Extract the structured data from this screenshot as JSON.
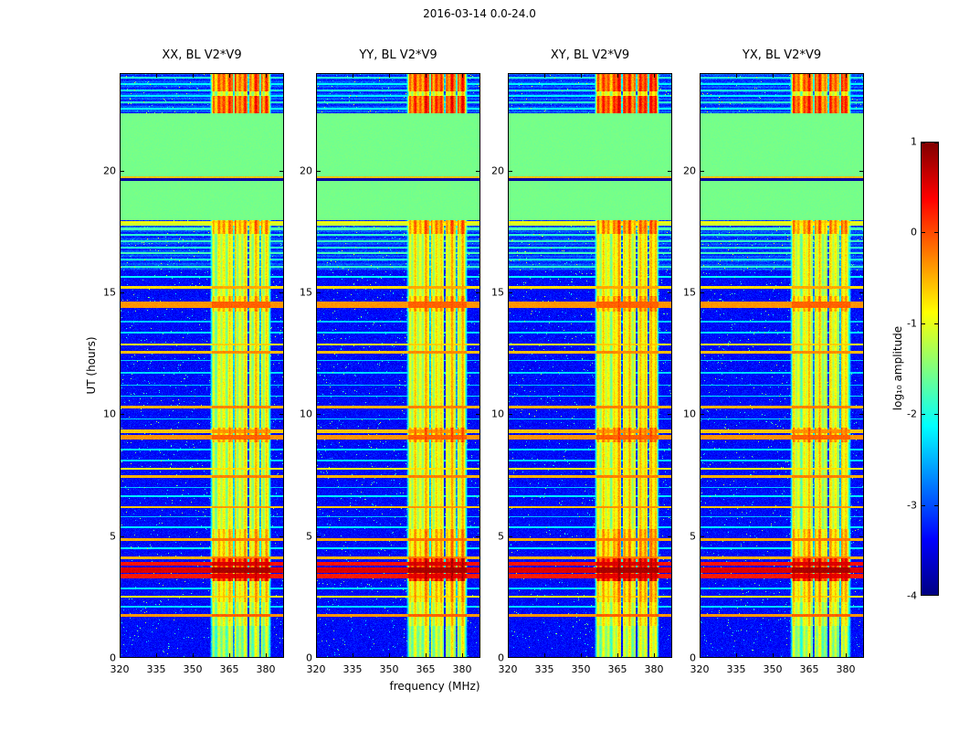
{
  "suptitle": "2016-03-14 0.0-24.0",
  "chart_data": {
    "type": "heatmap",
    "title": "2016-03-14 0.0-24.0",
    "xlabel": "frequency (MHz)",
    "ylabel": "UT (hours)",
    "x_range": [
      320,
      387.5
    ],
    "y_range": [
      0,
      24
    ],
    "x_ticks": [
      320,
      335,
      350,
      365,
      380
    ],
    "y_ticks": [
      0,
      5,
      10,
      15,
      20
    ],
    "colormap": "jet",
    "panels": [
      {
        "title": "XX, BL V2*V9",
        "seed": 101,
        "band_shift": 0,
        "band_gain": 0
      },
      {
        "title": "YY, BL V2*V9",
        "seed": 202,
        "band_shift": 0,
        "band_gain": 0.08
      },
      {
        "title": "XY, BL V2*V9",
        "seed": 303,
        "band_shift": -1.5,
        "band_gain": 0.1
      },
      {
        "title": "YX, BL V2*V9",
        "seed": 404,
        "band_shift": 0,
        "band_gain": 0
      }
    ],
    "colorbar": {
      "label": "log₁₀ amplitude",
      "ticks": [
        1,
        0,
        -1,
        -2,
        -3,
        -4
      ],
      "range": [
        -4,
        1
      ]
    },
    "features": {
      "background_level": -3.35,
      "rfi_band": {
        "f_start": 358,
        "f_end": 381.5,
        "level": -1.05
      },
      "rfi_gaps": [
        366.9,
        372.9,
        377.6
      ],
      "green_block": {
        "t_start": 17.95,
        "t_end": 22.35,
        "level": -1.55
      },
      "dark_line": {
        "t": 19.63,
        "level": -3.85
      },
      "red_line": {
        "t": 19.73,
        "level": -0.55
      },
      "band_boosts": [
        {
          "t0": 2.3,
          "t1": 3.15,
          "add": 0.25
        },
        {
          "t0": 3.15,
          "t1": 4.1,
          "add": 1.2
        },
        {
          "t0": 4.1,
          "t1": 5.3,
          "add": 0.35
        },
        {
          "t0": 8.85,
          "t1": 9.45,
          "add": 0.5
        },
        {
          "t0": 14.2,
          "t1": 14.85,
          "add": 0.4
        },
        {
          "t0": 17.4,
          "t1": 17.95,
          "add": 0.55
        },
        {
          "t0": 22.35,
          "t1": 23.05,
          "add": 0.95
        },
        {
          "t0": 23.25,
          "t1": 23.98,
          "add": 0.85
        }
      ],
      "horizontal_lines": [
        {
          "t": 1.75,
          "level": -0.35,
          "w": 0.05
        },
        {
          "t": 2.1,
          "level": -2.3,
          "w": 0.04
        },
        {
          "t": 2.5,
          "level": -0.9,
          "w": 0.04
        },
        {
          "t": 2.85,
          "level": -2.2,
          "w": 0.04
        },
        {
          "t": 3.35,
          "level": 0.25,
          "w": 0.09
        },
        {
          "t": 3.6,
          "level": 0.55,
          "w": 0.12
        },
        {
          "t": 3.85,
          "level": 0.3,
          "w": 0.07
        },
        {
          "t": 4.1,
          "level": -0.5,
          "w": 0.05
        },
        {
          "t": 4.5,
          "level": -2.1,
          "w": 0.04
        },
        {
          "t": 4.85,
          "level": -0.45,
          "w": 0.06
        },
        {
          "t": 5.35,
          "level": -2.2,
          "w": 0.04
        },
        {
          "t": 5.8,
          "level": -2.4,
          "w": 0.03
        },
        {
          "t": 6.2,
          "level": -0.6,
          "w": 0.04
        },
        {
          "t": 6.65,
          "level": -2.2,
          "w": 0.04
        },
        {
          "t": 7.0,
          "level": -2.4,
          "w": 0.03
        },
        {
          "t": 7.45,
          "level": -0.5,
          "w": 0.05
        },
        {
          "t": 7.75,
          "level": -1.0,
          "w": 0.04
        },
        {
          "t": 8.1,
          "level": -2.3,
          "w": 0.03
        },
        {
          "t": 8.55,
          "level": -2.2,
          "w": 0.03
        },
        {
          "t": 9.05,
          "level": -0.35,
          "w": 0.1
        },
        {
          "t": 9.3,
          "level": -0.6,
          "w": 0.06
        },
        {
          "t": 9.8,
          "level": -2.3,
          "w": 0.03
        },
        {
          "t": 10.3,
          "level": -0.5,
          "w": 0.05
        },
        {
          "t": 10.75,
          "level": -2.2,
          "w": 0.03
        },
        {
          "t": 11.2,
          "level": -2.4,
          "w": 0.03
        },
        {
          "t": 11.7,
          "level": -2.3,
          "w": 0.03
        },
        {
          "t": 12.2,
          "level": -2.4,
          "w": 0.03
        },
        {
          "t": 12.55,
          "level": -0.55,
          "w": 0.05
        },
        {
          "t": 12.85,
          "level": -0.9,
          "w": 0.04
        },
        {
          "t": 13.35,
          "level": -2.2,
          "w": 0.03
        },
        {
          "t": 13.8,
          "level": -2.4,
          "w": 0.03
        },
        {
          "t": 14.5,
          "level": -0.35,
          "w": 0.14
        },
        {
          "t": 15.2,
          "level": -0.7,
          "w": 0.05
        },
        {
          "t": 15.65,
          "level": -2.1,
          "w": 0.04
        },
        {
          "t": 16.05,
          "level": -1.9,
          "w": 0.04
        },
        {
          "t": 16.35,
          "level": -2.0,
          "w": 0.04
        },
        {
          "t": 16.6,
          "level": -1.8,
          "w": 0.04
        },
        {
          "t": 16.85,
          "level": -1.95,
          "w": 0.04
        },
        {
          "t": 17.1,
          "level": -1.85,
          "w": 0.04
        },
        {
          "t": 17.35,
          "level": -1.9,
          "w": 0.04
        },
        {
          "t": 17.6,
          "level": -1.75,
          "w": 0.05
        },
        {
          "t": 17.8,
          "level": -1.1,
          "w": 0.05
        },
        {
          "t": 17.9,
          "level": -0.9,
          "w": 0.04
        },
        {
          "t": 22.55,
          "level": -2.1,
          "w": 0.04
        },
        {
          "t": 22.8,
          "level": -1.9,
          "w": 0.04
        },
        {
          "t": 23.05,
          "level": -2.2,
          "w": 0.04
        },
        {
          "t": 23.3,
          "level": -2.0,
          "w": 0.04
        },
        {
          "t": 23.55,
          "level": -2.15,
          "w": 0.04
        },
        {
          "t": 23.8,
          "level": -1.95,
          "w": 0.04
        }
      ]
    }
  }
}
